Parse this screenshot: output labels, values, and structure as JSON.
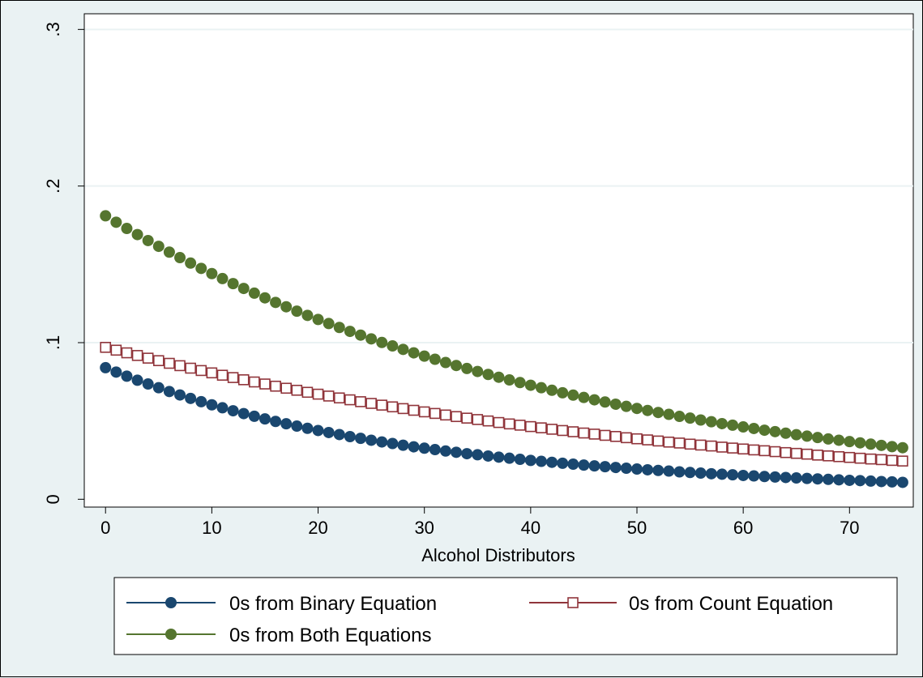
{
  "chart_data": {
    "type": "scatter",
    "title": "",
    "xlabel": "Alcohol Distributors",
    "ylabel": "",
    "xlim": [
      -2,
      76
    ],
    "ylim": [
      -0.005,
      0.31
    ],
    "x_ticks": [
      0,
      10,
      20,
      30,
      40,
      50,
      60,
      70
    ],
    "x_tick_labels": [
      "0",
      "10",
      "20",
      "30",
      "40",
      "50",
      "60",
      "70"
    ],
    "y_ticks": [
      0,
      0.1,
      0.2,
      0.3
    ],
    "y_tick_labels": [
      "0",
      ".1",
      ".2",
      ".3"
    ],
    "grid": "horizontal",
    "legend_placement": "bottom",
    "x": [
      0,
      1,
      2,
      3,
      4,
      5,
      6,
      7,
      8,
      9,
      10,
      11,
      12,
      13,
      14,
      15,
      16,
      17,
      18,
      19,
      20,
      21,
      22,
      23,
      24,
      25,
      26,
      27,
      28,
      29,
      30,
      31,
      32,
      33,
      34,
      35,
      36,
      37,
      38,
      39,
      40,
      41,
      42,
      43,
      44,
      45,
      46,
      47,
      48,
      49,
      50,
      51,
      52,
      53,
      54,
      55,
      56,
      57,
      58,
      59,
      60,
      61,
      62,
      63,
      64,
      65,
      66,
      67,
      68,
      69,
      70,
      71,
      72,
      73,
      74,
      75
    ],
    "series": [
      {
        "name": "0s from Binary Equation",
        "marker": "circle",
        "color": "#1a476f",
        "values": [
          0.084,
          0.0812,
          0.0786,
          0.076,
          0.0736,
          0.0712,
          0.0688,
          0.0666,
          0.0644,
          0.0623,
          0.0603,
          0.0584,
          0.0565,
          0.0547,
          0.053,
          0.0513,
          0.0497,
          0.0482,
          0.0467,
          0.0453,
          0.0439,
          0.0426,
          0.0413,
          0.04,
          0.0389,
          0.0377,
          0.0366,
          0.0356,
          0.0345,
          0.0335,
          0.0326,
          0.0317,
          0.0308,
          0.03,
          0.0291,
          0.0284,
          0.0276,
          0.0269,
          0.0262,
          0.0255,
          0.0248,
          0.0242,
          0.0236,
          0.023,
          0.0224,
          0.0218,
          0.0213,
          0.0208,
          0.0203,
          0.0198,
          0.0193,
          0.0188,
          0.0184,
          0.018,
          0.0175,
          0.0171,
          0.0167,
          0.0163,
          0.016,
          0.0156,
          0.0152,
          0.0149,
          0.0145,
          0.0142,
          0.0139,
          0.0136,
          0.0133,
          0.013,
          0.0127,
          0.0124,
          0.0121,
          0.0119,
          0.0116,
          0.0113,
          0.0111,
          0.0108
        ]
      },
      {
        "name": "0s from Count Equation",
        "marker": "hollow-square",
        "color": "#90353b",
        "values": [
          0.097,
          0.0952,
          0.0935,
          0.0918,
          0.0901,
          0.0885,
          0.0868,
          0.0853,
          0.0837,
          0.0822,
          0.0807,
          0.0792,
          0.0777,
          0.0763,
          0.0749,
          0.0736,
          0.0722,
          0.0709,
          0.0696,
          0.0683,
          0.0671,
          0.0659,
          0.0647,
          0.0635,
          0.0623,
          0.0612,
          0.0601,
          0.059,
          0.0579,
          0.0568,
          0.0558,
          0.0548,
          0.0538,
          0.0528,
          0.0518,
          0.0509,
          0.05,
          0.049,
          0.0481,
          0.0473,
          0.0464,
          0.0456,
          0.0447,
          0.0439,
          0.0431,
          0.0423,
          0.0416,
          0.0408,
          0.0401,
          0.0393,
          0.0386,
          0.0379,
          0.0372,
          0.0365,
          0.0359,
          0.0352,
          0.0346,
          0.034,
          0.0333,
          0.0327,
          0.0321,
          0.0315,
          0.031,
          0.0304,
          0.0298,
          0.0293,
          0.0288,
          0.0282,
          0.0277,
          0.0272,
          0.0267,
          0.0262,
          0.0257,
          0.0253,
          0.0248,
          0.0244
        ]
      },
      {
        "name": "0s from Both Equations",
        "marker": "circle",
        "color": "#55752f",
        "values": [
          0.181,
          0.1769,
          0.1729,
          0.169,
          0.1652,
          0.1615,
          0.1578,
          0.1543,
          0.1508,
          0.1474,
          0.1441,
          0.1409,
          0.1377,
          0.1346,
          0.1316,
          0.1286,
          0.1257,
          0.1229,
          0.1201,
          0.1174,
          0.1148,
          0.1122,
          0.1097,
          0.1072,
          0.1048,
          0.1024,
          0.1001,
          0.0979,
          0.0957,
          0.0935,
          0.0914,
          0.0894,
          0.0873,
          0.0854,
          0.0835,
          0.0816,
          0.0797,
          0.0779,
          0.0762,
          0.0745,
          0.0728,
          0.0712,
          0.0696,
          0.068,
          0.0665,
          0.065,
          0.0635,
          0.0621,
          0.0607,
          0.0593,
          0.058,
          0.0567,
          0.0554,
          0.0542,
          0.0529,
          0.0518,
          0.0506,
          0.0495,
          0.0483,
          0.0473,
          0.0462,
          0.0452,
          0.0441,
          0.0432,
          0.0422,
          0.0412,
          0.0403,
          0.0394,
          0.0385,
          0.0377,
          0.0368,
          0.036,
          0.0352,
          0.0344,
          0.0336,
          0.0329
        ]
      }
    ]
  }
}
